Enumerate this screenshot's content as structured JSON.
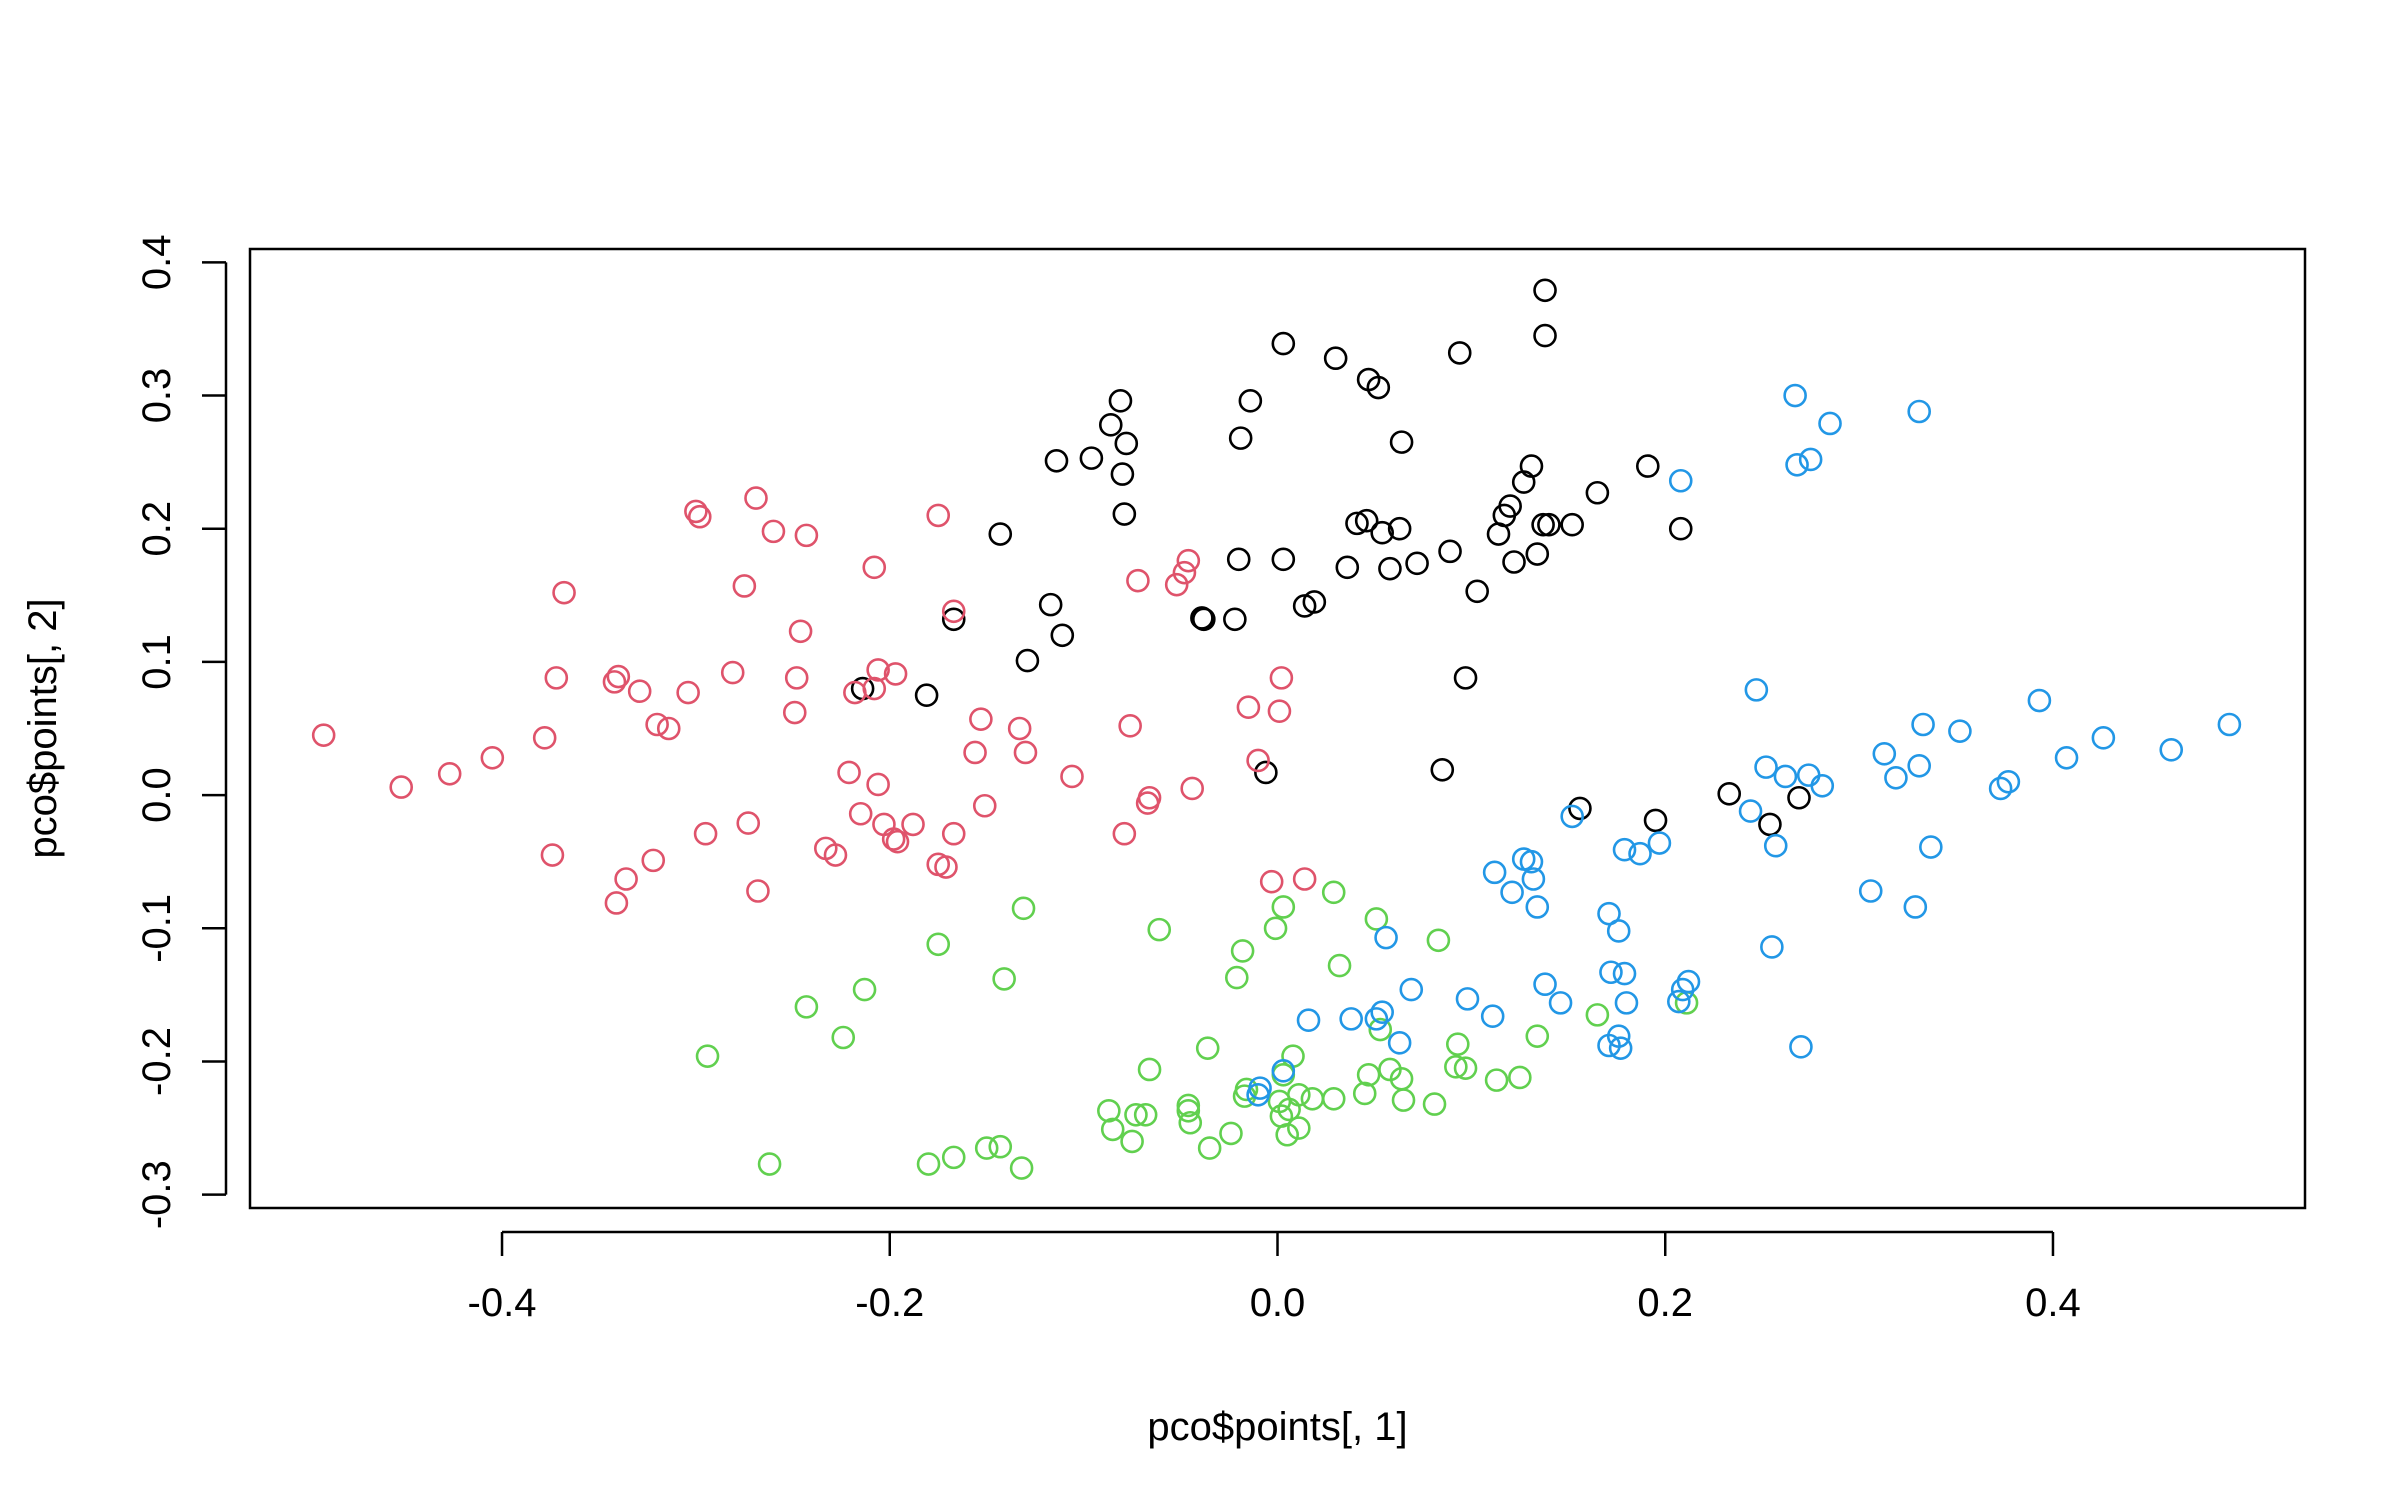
{
  "chart_data": {
    "type": "scatter",
    "title": "",
    "xlabel": "pco$points[, 1]",
    "ylabel": "pco$points[, 2]",
    "xlim": [
      -0.53,
      0.53
    ],
    "ylim": [
      -0.31,
      0.41
    ],
    "xticks": [
      -0.4,
      -0.2,
      0.0,
      0.2,
      0.4
    ],
    "xtick_labels": [
      "-0.4",
      "-0.2",
      "0.0",
      "0.2",
      "0.4"
    ],
    "yticks": [
      -0.3,
      -0.2,
      -0.1,
      0.0,
      0.1,
      0.2,
      0.3,
      0.4
    ],
    "ytick_labels": [
      "-0.3",
      "-0.2",
      "-0.1",
      "0.0",
      "0.1",
      "0.2",
      "0.3",
      "0.4"
    ],
    "grid": false,
    "legend": "none",
    "marker": "open-circle",
    "series": [
      {
        "color": "#000000",
        "points": [
          [
            0.138,
            0.379
          ],
          [
            0.138,
            0.345
          ],
          [
            0.003,
            0.339
          ],
          [
            0.094,
            0.332
          ],
          [
            0.03,
            0.328
          ],
          [
            0.047,
            0.312
          ],
          [
            0.052,
            0.306
          ],
          [
            -0.081,
            0.296
          ],
          [
            -0.014,
            0.296
          ],
          [
            -0.086,
            0.278
          ],
          [
            -0.078,
            0.264
          ],
          [
            -0.019,
            0.268
          ],
          [
            0.064,
            0.265
          ],
          [
            -0.096,
            0.253
          ],
          [
            -0.114,
            0.251
          ],
          [
            0.131,
            0.247
          ],
          [
            0.191,
            0.247
          ],
          [
            -0.08,
            0.241
          ],
          [
            0.127,
            0.235
          ],
          [
            0.165,
            0.227
          ],
          [
            0.12,
            0.217
          ],
          [
            0.117,
            0.21
          ],
          [
            -0.079,
            0.211
          ],
          [
            0.041,
            0.204
          ],
          [
            0.046,
            0.206
          ],
          [
            0.14,
            0.203
          ],
          [
            0.137,
            0.203
          ],
          [
            0.152,
            0.203
          ],
          [
            0.208,
            0.2
          ],
          [
            0.063,
            0.2
          ],
          [
            0.054,
            0.197
          ],
          [
            0.114,
            0.196
          ],
          [
            -0.143,
            0.196
          ],
          [
            0.089,
            0.183
          ],
          [
            0.134,
            0.181
          ],
          [
            -0.02,
            0.177
          ],
          [
            0.003,
            0.177
          ],
          [
            0.122,
            0.175
          ],
          [
            0.072,
            0.174
          ],
          [
            0.036,
            0.171
          ],
          [
            0.058,
            0.17
          ],
          [
            0.103,
            0.153
          ],
          [
            0.019,
            0.145
          ],
          [
            0.014,
            0.142
          ],
          [
            -0.117,
            0.143
          ],
          [
            -0.039,
            0.133
          ],
          [
            -0.038,
            0.132
          ],
          [
            -0.022,
            0.132
          ],
          [
            -0.167,
            0.132
          ],
          [
            -0.111,
            0.12
          ],
          [
            -0.129,
            0.101
          ],
          [
            0.097,
            0.088
          ],
          [
            -0.214,
            0.08
          ],
          [
            -0.181,
            0.075
          ],
          [
            -0.006,
            0.017
          ],
          [
            0.085,
            0.019
          ],
          [
            0.156,
            -0.01
          ],
          [
            0.233,
            0.001
          ],
          [
            0.269,
            -0.002
          ],
          [
            0.195,
            -0.019
          ],
          [
            0.254,
            -0.022
          ]
        ]
      },
      {
        "color": "#DF536B",
        "points": [
          [
            -0.492,
            0.045
          ],
          [
            -0.452,
            0.006
          ],
          [
            -0.427,
            0.016
          ],
          [
            -0.405,
            0.028
          ],
          [
            -0.378,
            0.043
          ],
          [
            -0.368,
            0.152
          ],
          [
            -0.372,
            0.088
          ],
          [
            -0.342,
            0.085
          ],
          [
            -0.34,
            0.089
          ],
          [
            -0.329,
            0.078
          ],
          [
            -0.32,
            0.053
          ],
          [
            -0.314,
            0.05
          ],
          [
            -0.304,
            0.077
          ],
          [
            -0.3,
            0.213
          ],
          [
            -0.298,
            0.209
          ],
          [
            -0.275,
            0.157
          ],
          [
            -0.269,
            0.223
          ],
          [
            -0.26,
            0.198
          ],
          [
            -0.243,
            0.195
          ],
          [
            -0.281,
            0.092
          ],
          [
            -0.246,
            0.123
          ],
          [
            -0.248,
            0.088
          ],
          [
            -0.249,
            0.062
          ],
          [
            -0.208,
            0.171
          ],
          [
            -0.175,
            0.21
          ],
          [
            -0.167,
            0.138
          ],
          [
            -0.206,
            0.094
          ],
          [
            -0.197,
            0.091
          ],
          [
            -0.218,
            0.077
          ],
          [
            -0.208,
            0.08
          ],
          [
            -0.153,
            0.057
          ],
          [
            -0.156,
            0.032
          ],
          [
            -0.133,
            0.05
          ],
          [
            -0.13,
            0.032
          ],
          [
            -0.106,
            0.014
          ],
          [
            -0.076,
            0.052
          ],
          [
            -0.221,
            0.017
          ],
          [
            -0.206,
            0.008
          ],
          [
            -0.215,
            -0.014
          ],
          [
            -0.203,
            -0.022
          ],
          [
            -0.188,
            -0.022
          ],
          [
            -0.198,
            -0.033
          ],
          [
            -0.196,
            -0.035
          ],
          [
            -0.175,
            -0.052
          ],
          [
            -0.171,
            -0.054
          ],
          [
            -0.167,
            -0.029
          ],
          [
            -0.151,
            -0.008
          ],
          [
            -0.066,
            -0.002
          ],
          [
            -0.067,
            -0.006
          ],
          [
            -0.044,
            0.005
          ],
          [
            -0.079,
            -0.029
          ],
          [
            -0.233,
            -0.04
          ],
          [
            -0.228,
            -0.045
          ],
          [
            -0.295,
            -0.029
          ],
          [
            -0.273,
            -0.021
          ],
          [
            -0.268,
            -0.072
          ],
          [
            -0.322,
            -0.049
          ],
          [
            -0.336,
            -0.063
          ],
          [
            -0.341,
            -0.081
          ],
          [
            -0.374,
            -0.045
          ],
          [
            -0.072,
            0.161
          ],
          [
            -0.052,
            0.158
          ],
          [
            -0.048,
            0.167
          ],
          [
            -0.046,
            0.176
          ],
          [
            -0.015,
            0.066
          ],
          [
            0.002,
            0.088
          ],
          [
            0.001,
            0.063
          ],
          [
            -0.01,
            0.026
          ],
          [
            -0.003,
            -0.065
          ],
          [
            0.014,
            -0.063
          ]
        ]
      },
      {
        "color": "#61D04F",
        "points": [
          [
            -0.131,
            -0.085
          ],
          [
            -0.175,
            -0.112
          ],
          [
            -0.141,
            -0.138
          ],
          [
            -0.213,
            -0.146
          ],
          [
            -0.243,
            -0.159
          ],
          [
            -0.224,
            -0.182
          ],
          [
            -0.294,
            -0.196
          ],
          [
            -0.262,
            -0.277
          ],
          [
            -0.18,
            -0.277
          ],
          [
            -0.167,
            -0.272
          ],
          [
            -0.15,
            -0.265
          ],
          [
            -0.143,
            -0.264
          ],
          [
            -0.132,
            -0.28
          ],
          [
            -0.061,
            -0.101
          ],
          [
            -0.066,
            -0.206
          ],
          [
            -0.087,
            -0.237
          ],
          [
            -0.085,
            -0.251
          ],
          [
            -0.075,
            -0.26
          ],
          [
            -0.073,
            -0.24
          ],
          [
            -0.068,
            -0.24
          ],
          [
            -0.036,
            -0.19
          ],
          [
            -0.046,
            -0.233
          ],
          [
            -0.046,
            -0.237
          ],
          [
            -0.045,
            -0.246
          ],
          [
            -0.035,
            -0.265
          ],
          [
            -0.024,
            -0.254
          ],
          [
            -0.021,
            -0.137
          ],
          [
            -0.018,
            -0.117
          ],
          [
            -0.016,
            -0.221
          ],
          [
            -0.017,
            -0.226
          ],
          [
            0.003,
            -0.084
          ],
          [
            -0.001,
            -0.1
          ],
          [
            0.029,
            -0.073
          ],
          [
            0.032,
            -0.128
          ],
          [
            0.008,
            -0.196
          ],
          [
            0.003,
            -0.21
          ],
          [
            0.001,
            -0.23
          ],
          [
            0.011,
            -0.225
          ],
          [
            0.018,
            -0.228
          ],
          [
            0.002,
            -0.241
          ],
          [
            0.006,
            -0.236
          ],
          [
            0.011,
            -0.25
          ],
          [
            0.005,
            -0.255
          ],
          [
            0.029,
            -0.228
          ],
          [
            0.045,
            -0.224
          ],
          [
            0.047,
            -0.21
          ],
          [
            0.051,
            -0.093
          ],
          [
            0.053,
            -0.176
          ],
          [
            0.058,
            -0.206
          ],
          [
            0.064,
            -0.213
          ],
          [
            0.065,
            -0.229
          ],
          [
            0.081,
            -0.232
          ],
          [
            0.083,
            -0.109
          ],
          [
            0.093,
            -0.187
          ],
          [
            0.092,
            -0.204
          ],
          [
            0.097,
            -0.205
          ],
          [
            0.113,
            -0.214
          ],
          [
            0.125,
            -0.212
          ],
          [
            0.134,
            -0.181
          ],
          [
            0.165,
            -0.165
          ],
          [
            0.211,
            -0.156
          ]
        ]
      },
      {
        "color": "#2297E6",
        "points": [
          [
            0.267,
            0.3
          ],
          [
            0.331,
            0.288
          ],
          [
            0.285,
            0.279
          ],
          [
            0.275,
            0.252
          ],
          [
            0.268,
            0.248
          ],
          [
            0.208,
            0.236
          ],
          [
            0.247,
            0.079
          ],
          [
            0.393,
            0.071
          ],
          [
            0.352,
            0.048
          ],
          [
            0.333,
            0.053
          ],
          [
            0.426,
            0.043
          ],
          [
            0.407,
            0.028
          ],
          [
            0.313,
            0.031
          ],
          [
            0.331,
            0.022
          ],
          [
            0.252,
            0.021
          ],
          [
            0.262,
            0.014
          ],
          [
            0.274,
            0.015
          ],
          [
            0.281,
            0.007
          ],
          [
            0.319,
            0.013
          ],
          [
            0.373,
            0.005
          ],
          [
            0.377,
            0.01
          ],
          [
            0.461,
            0.034
          ],
          [
            0.491,
            0.053
          ],
          [
            0.244,
            -0.012
          ],
          [
            0.152,
            -0.016
          ],
          [
            0.257,
            -0.038
          ],
          [
            0.179,
            -0.041
          ],
          [
            0.187,
            -0.044
          ],
          [
            0.197,
            -0.036
          ],
          [
            0.337,
            -0.039
          ],
          [
            0.112,
            -0.058
          ],
          [
            0.127,
            -0.048
          ],
          [
            0.131,
            -0.05
          ],
          [
            0.132,
            -0.063
          ],
          [
            0.121,
            -0.073
          ],
          [
            0.134,
            -0.084
          ],
          [
            0.171,
            -0.089
          ],
          [
            0.176,
            -0.102
          ],
          [
            0.306,
            -0.072
          ],
          [
            0.329,
            -0.084
          ],
          [
            0.255,
            -0.114
          ],
          [
            0.056,
            -0.107
          ],
          [
            0.172,
            -0.133
          ],
          [
            0.179,
            -0.134
          ],
          [
            0.212,
            -0.14
          ],
          [
            0.138,
            -0.142
          ],
          [
            0.209,
            -0.146
          ],
          [
            0.146,
            -0.156
          ],
          [
            0.18,
            -0.156
          ],
          [
            0.207,
            -0.155
          ],
          [
            0.069,
            -0.146
          ],
          [
            0.098,
            -0.153
          ],
          [
            0.111,
            -0.166
          ],
          [
            0.054,
            -0.163
          ],
          [
            0.051,
            -0.168
          ],
          [
            0.038,
            -0.168
          ],
          [
            0.016,
            -0.169
          ],
          [
            0.063,
            -0.186
          ],
          [
            0.171,
            -0.188
          ],
          [
            0.176,
            -0.181
          ],
          [
            0.177,
            -0.19
          ],
          [
            0.27,
            -0.189
          ],
          [
            0.003,
            -0.207
          ],
          [
            -0.009,
            -0.22
          ],
          [
            -0.01,
            -0.225
          ]
        ]
      }
    ]
  }
}
